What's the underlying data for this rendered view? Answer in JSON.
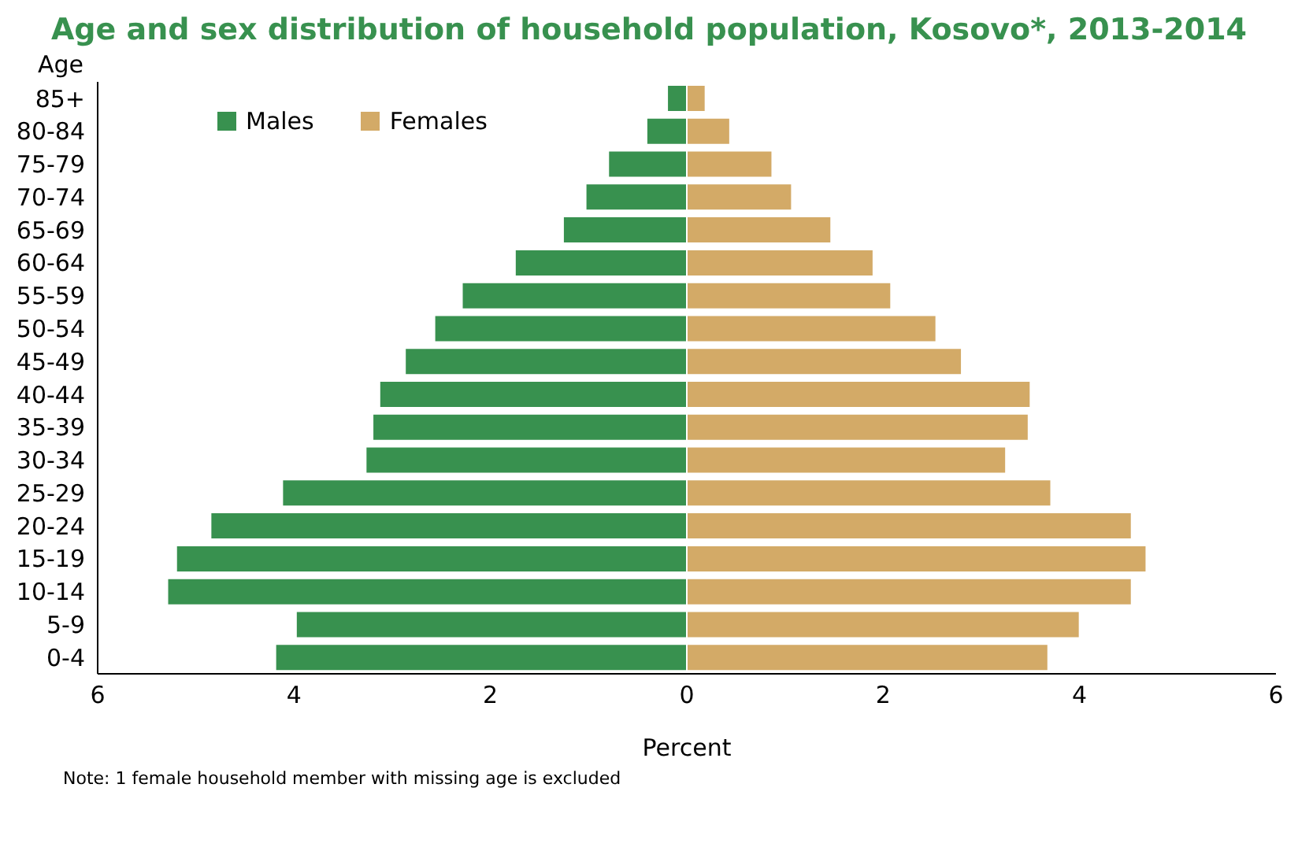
{
  "chart_data": {
    "type": "bar",
    "orientation": "horizontal",
    "stacked": true,
    "title": "Age and sex distribution of household population, Kosovo*, 2013-2014",
    "ylabel": "Age",
    "xlabel": "Percent",
    "annotations": [
      "Note: 1 female household member with missing age is excluded"
    ],
    "categories": [
      "85+",
      "80-84",
      "75-79",
      "70-74",
      "65-69",
      "60-64",
      "55-59",
      "50-54",
      "45-49",
      "40-44",
      "35-39",
      "30-34",
      "25-29",
      "20-24",
      "15-19",
      "10-14",
      "5-9",
      "0-4"
    ],
    "series": [
      {
        "name": "Males",
        "color": "#38914f",
        "values": [
          -0.2,
          -0.41,
          -0.8,
          -1.03,
          -1.26,
          -1.75,
          -2.29,
          -2.57,
          -2.87,
          -3.13,
          -3.2,
          -3.27,
          -4.12,
          -4.85,
          -5.2,
          -5.29,
          -3.98,
          -4.19
        ]
      },
      {
        "name": "Females",
        "color": "#d3aa67",
        "values": [
          0.19,
          0.44,
          0.87,
          1.07,
          1.47,
          1.9,
          2.08,
          2.54,
          2.8,
          3.5,
          3.48,
          3.25,
          3.71,
          4.53,
          4.68,
          4.53,
          4.0,
          3.68
        ]
      }
    ],
    "xlim": [
      -6,
      6
    ],
    "xticks": [
      {
        "value": -6,
        "label": "6"
      },
      {
        "value": -4,
        "label": "4"
      },
      {
        "value": -2,
        "label": "2"
      },
      0,
      2,
      4,
      6
    ],
    "grid": false,
    "legend": "top left"
  }
}
